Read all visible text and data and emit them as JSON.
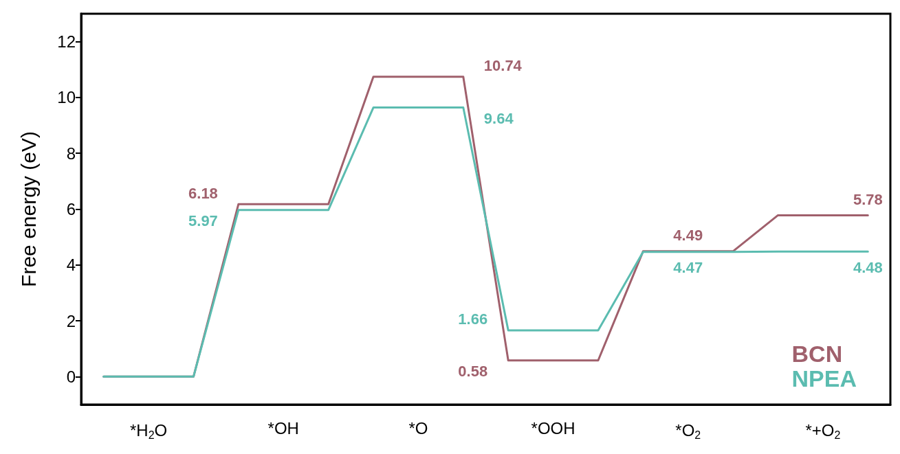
{
  "chart_data": {
    "type": "line",
    "categories": [
      null,
      "*H$_{2}$O",
      null,
      null,
      "*OH",
      null,
      null,
      "*O",
      null,
      null,
      "*OOH",
      null,
      null,
      "*O$_{2}$",
      null,
      null,
      "*+O$_{2}$",
      null
    ],
    "ylabel": "Free energy (eV)",
    "ylim": [
      -1,
      13
    ],
    "yticks": [
      0,
      2,
      4,
      6,
      8,
      10,
      12
    ],
    "grid": false,
    "legend": "bottom right",
    "marker": "none",
    "line_style": "solid",
    "series": [
      {
        "name": "BCN",
        "color": "#a0606c",
        "values": [
          0,
          0,
          0,
          6.18,
          6.18,
          6.18,
          10.74,
          10.74,
          10.74,
          0.58,
          0.58,
          0.58,
          4.49,
          4.49,
          4.49,
          5.78,
          5.78,
          5.78
        ],
        "value_labels": [
          null,
          null,
          null,
          "6.18",
          null,
          null,
          null,
          null,
          "10.74",
          "0.58",
          null,
          null,
          null,
          "4.49",
          null,
          null,
          null,
          "5.78"
        ]
      },
      {
        "name": "NPEA",
        "color": "#5bbcb0",
        "values": [
          0,
          0,
          0,
          5.97,
          5.97,
          5.97,
          9.64,
          9.64,
          9.64,
          1.66,
          1.66,
          1.66,
          4.47,
          4.47,
          4.47,
          4.48,
          4.48,
          4.48
        ],
        "value_labels": [
          null,
          null,
          null,
          "5.97",
          null,
          null,
          null,
          null,
          "9.64",
          "1.66",
          null,
          null,
          null,
          "4.47",
          null,
          null,
          null,
          "4.48"
        ]
      }
    ]
  }
}
